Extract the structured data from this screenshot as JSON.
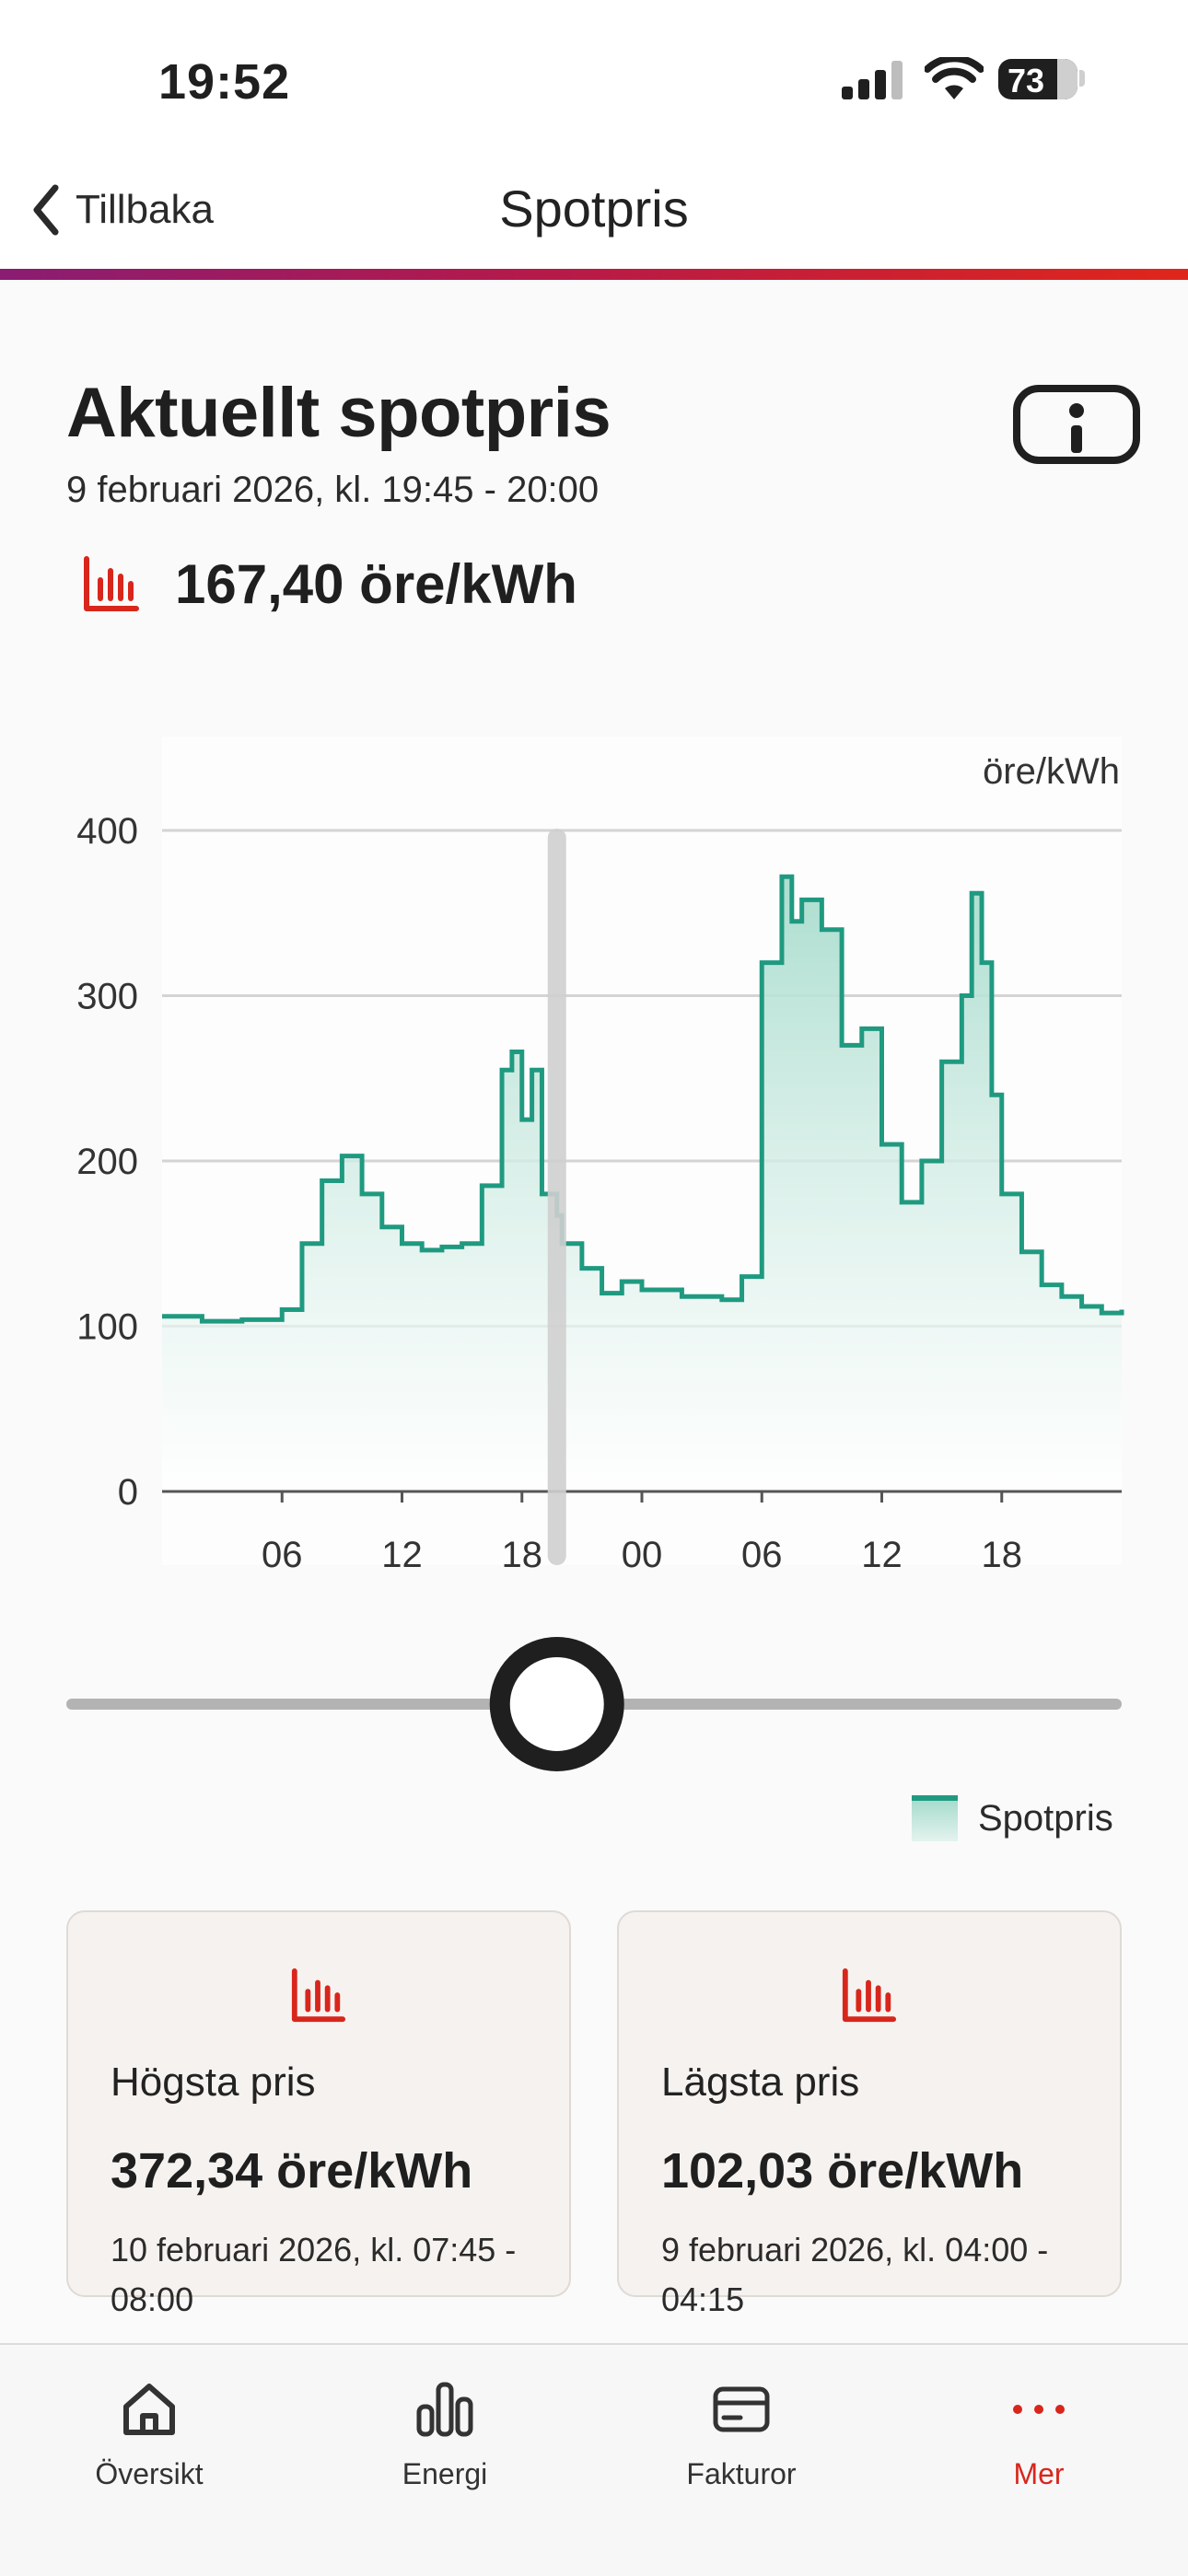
{
  "status_bar": {
    "time": "19:52",
    "battery": "73"
  },
  "nav": {
    "back_label": "Tillbaka",
    "title": "Spotpris"
  },
  "current": {
    "heading": "Aktuellt spotpris",
    "period": "9 februari 2026, kl. 19:45 - 20:00",
    "price": "167,40 öre/kWh"
  },
  "colors": {
    "accent_red": "#d8261c",
    "series": "#1f9a80",
    "gradient_start": "#8a1c72",
    "gradient_end": "#e0261b"
  },
  "chart_data": {
    "type": "area",
    "unit_label": "öre/kWh",
    "y_ticks": [
      "400",
      "300",
      "200",
      "100",
      "0"
    ],
    "ylim": [
      0,
      400
    ],
    "x_tick_labels": [
      "06",
      "12",
      "18",
      "00",
      "06",
      "12",
      "18"
    ],
    "x_hours": [
      0,
      2,
      4,
      6,
      7,
      8,
      9,
      10,
      11,
      12,
      13,
      14,
      15,
      16,
      17,
      17.5,
      18,
      18.5,
      19,
      19.75,
      20,
      21,
      22,
      23,
      24,
      26,
      28,
      29,
      30,
      31,
      31.5,
      32,
      33,
      34,
      35,
      36,
      37,
      38,
      39,
      40,
      40.5,
      41,
      41.5,
      42,
      43,
      44,
      45,
      46,
      47,
      48
    ],
    "series": [
      {
        "name": "Spotpris",
        "values": [
          106,
          103,
          104,
          110,
          150,
          188,
          203,
          180,
          160,
          150,
          146,
          148,
          150,
          185,
          255,
          266,
          225,
          255,
          180,
          167,
          150,
          135,
          120,
          127,
          122,
          118,
          116,
          130,
          320,
          372,
          345,
          358,
          340,
          270,
          280,
          210,
          175,
          200,
          260,
          300,
          362,
          320,
          240,
          180,
          145,
          125,
          118,
          112,
          108,
          110
        ]
      }
    ],
    "cursor_hour": 19.75,
    "legend": "Spotpris",
    "legend_position": "bottom-right",
    "grid": true
  },
  "cards": {
    "high": {
      "label": "Högsta pris",
      "value": "372,34 öre/kWh",
      "date": "10 februari 2026, kl. 07:45 - 08:00"
    },
    "low": {
      "label": "Lägsta pris",
      "value": "102,03 öre/kWh",
      "date": "9 februari 2026, kl. 04:00 - 04:15"
    }
  },
  "tabs": [
    {
      "label": "Översikt",
      "icon": "home-icon"
    },
    {
      "label": "Energi",
      "icon": "bar-chart-icon"
    },
    {
      "label": "Fakturor",
      "icon": "card-icon"
    },
    {
      "label": "Mer",
      "icon": "more-icon",
      "active": true
    }
  ]
}
